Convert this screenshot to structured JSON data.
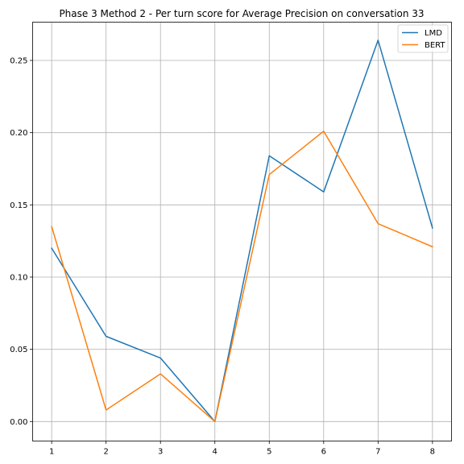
{
  "chart_data": {
    "type": "line",
    "title": "Phase 3 Method 2 - Per turn score for Average Precision on conversation 33",
    "xlabel": "",
    "ylabel": "",
    "x": [
      1,
      2,
      3,
      4,
      5,
      6,
      7,
      8
    ],
    "xlim": [
      0.65,
      8.35
    ],
    "ylim": [
      -0.0135,
      0.2765
    ],
    "x_ticks": [
      "1",
      "2",
      "3",
      "4",
      "5",
      "6",
      "7",
      "8"
    ],
    "y_ticks": [
      "0.00",
      "0.05",
      "0.10",
      "0.15",
      "0.20",
      "0.25"
    ],
    "y_tick_values": [
      0,
      0.05,
      0.1,
      0.15,
      0.2,
      0.25
    ],
    "grid": true,
    "legend_position": "top-right",
    "series": [
      {
        "name": "LMD",
        "color": "#1f77b4",
        "values": [
          0.12,
          0.059,
          0.044,
          0.0,
          0.184,
          0.159,
          0.264,
          0.134
        ]
      },
      {
        "name": "BERT",
        "color": "#ff7f0e",
        "values": [
          0.135,
          0.008,
          0.033,
          0.0,
          0.171,
          0.201,
          0.137,
          0.121
        ]
      }
    ]
  }
}
